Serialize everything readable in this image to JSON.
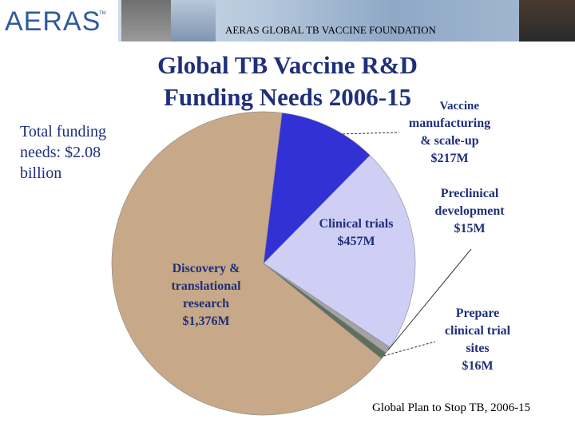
{
  "header": {
    "logo_text": "AERAS",
    "logo_tm": "TM",
    "foundation": "AERAS GLOBAL TB VACCINE FOUNDATION"
  },
  "slide": {
    "title_line1": "Global TB Vaccine R&D",
    "title_line2": "Funding Needs 2006-15",
    "total_line1": "Total funding",
    "total_line2": "needs: $2.08",
    "total_line3": "billion",
    "source": "Global Plan to Stop TB, 2006-15"
  },
  "chart_data": {
    "type": "pie",
    "title": "Global TB Vaccine R&D Funding Needs 2006-15",
    "units": "USD millions",
    "slices": [
      {
        "name": "Vaccine manufacturing & scale-up",
        "value": 217,
        "label": "$217M",
        "color": "#3131d6"
      },
      {
        "name": "Clinical trials",
        "value": 457,
        "label": "$457M",
        "color": "#cfcff6"
      },
      {
        "name": "Preclinical development",
        "value": 15,
        "label": "$15M",
        "color": "#a3a3a3"
      },
      {
        "name": "Prepare clinical trial sites",
        "value": 16,
        "label": "$16M",
        "color": "#5f6f5f"
      },
      {
        "name": "Discovery & translational research",
        "value": 1376,
        "label": "$1,376M",
        "color": "#c7a888"
      }
    ]
  }
}
